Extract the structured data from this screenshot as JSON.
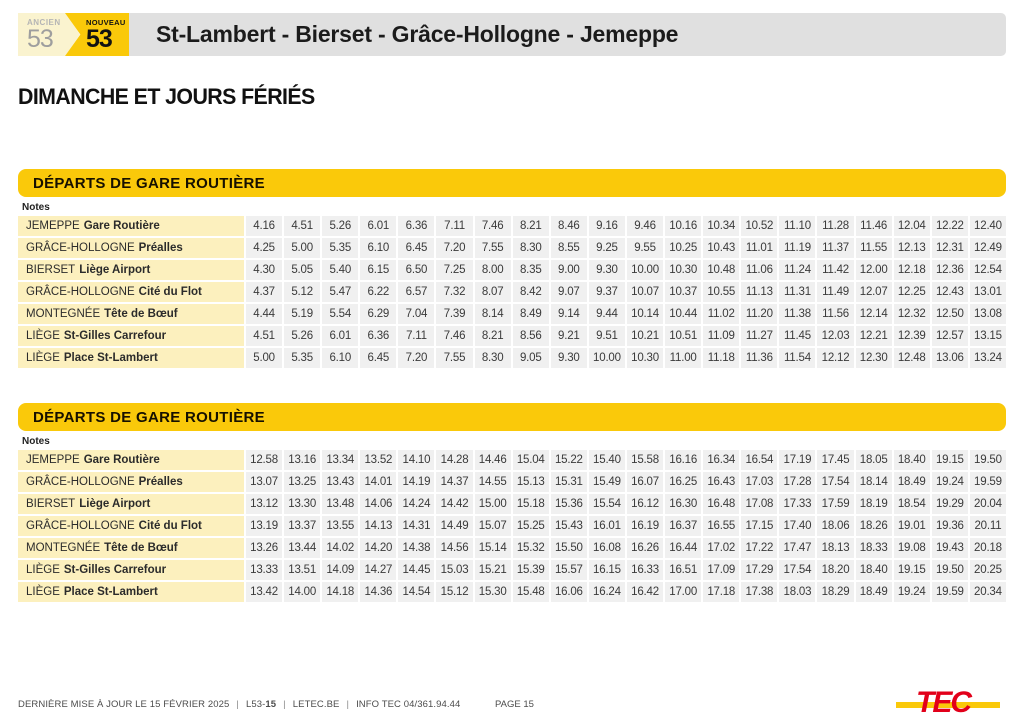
{
  "header": {
    "ancien_label": "ANCIEN",
    "ancien_number": "53",
    "nouveau_label": "NOUVEAU",
    "nouveau_number": "53",
    "title": "St-Lambert - Bierset - Grâce-Hollogne - Jemeppe"
  },
  "section_title": "DIMANCHE ET JOURS FÉRIÉS",
  "tables": [
    {
      "header": "DÉPARTS DE GARE ROUTIÈRE",
      "notes_label": "Notes",
      "rows": [
        {
          "place": "JEMEPPE",
          "stop": "Gare Routière",
          "times": [
            "4.16",
            "4.51",
            "5.26",
            "6.01",
            "6.36",
            "7.11",
            "7.46",
            "8.21",
            "8.46",
            "9.16",
            "9.46",
            "10.16",
            "10.34",
            "10.52",
            "11.10",
            "11.28",
            "11.46",
            "12.04",
            "12.22",
            "12.40"
          ]
        },
        {
          "place": "GRÂCE-HOLLOGNE",
          "stop": "Préalles",
          "times": [
            "4.25",
            "5.00",
            "5.35",
            "6.10",
            "6.45",
            "7.20",
            "7.55",
            "8.30",
            "8.55",
            "9.25",
            "9.55",
            "10.25",
            "10.43",
            "11.01",
            "11.19",
            "11.37",
            "11.55",
            "12.13",
            "12.31",
            "12.49"
          ]
        },
        {
          "place": "BIERSET",
          "stop": "Liège Airport",
          "times": [
            "4.30",
            "5.05",
            "5.40",
            "6.15",
            "6.50",
            "7.25",
            "8.00",
            "8.35",
            "9.00",
            "9.30",
            "10.00",
            "10.30",
            "10.48",
            "11.06",
            "11.24",
            "11.42",
            "12.00",
            "12.18",
            "12.36",
            "12.54"
          ]
        },
        {
          "place": "GRÂCE-HOLLOGNE",
          "stop": "Cité du Flot",
          "times": [
            "4.37",
            "5.12",
            "5.47",
            "6.22",
            "6.57",
            "7.32",
            "8.07",
            "8.42",
            "9.07",
            "9.37",
            "10.07",
            "10.37",
            "10.55",
            "11.13",
            "11.31",
            "11.49",
            "12.07",
            "12.25",
            "12.43",
            "13.01"
          ]
        },
        {
          "place": "MONTEGNÉE",
          "stop": "Tête de Bœuf",
          "times": [
            "4.44",
            "5.19",
            "5.54",
            "6.29",
            "7.04",
            "7.39",
            "8.14",
            "8.49",
            "9.14",
            "9.44",
            "10.14",
            "10.44",
            "11.02",
            "11.20",
            "11.38",
            "11.56",
            "12.14",
            "12.32",
            "12.50",
            "13.08"
          ]
        },
        {
          "place": "LIÈGE",
          "stop": "St-Gilles Carrefour",
          "times": [
            "4.51",
            "5.26",
            "6.01",
            "6.36",
            "7.11",
            "7.46",
            "8.21",
            "8.56",
            "9.21",
            "9.51",
            "10.21",
            "10.51",
            "11.09",
            "11.27",
            "11.45",
            "12.03",
            "12.21",
            "12.39",
            "12.57",
            "13.15"
          ]
        },
        {
          "place": "LIÈGE",
          "stop": "Place St-Lambert",
          "times": [
            "5.00",
            "5.35",
            "6.10",
            "6.45",
            "7.20",
            "7.55",
            "8.30",
            "9.05",
            "9.30",
            "10.00",
            "10.30",
            "11.00",
            "11.18",
            "11.36",
            "11.54",
            "12.12",
            "12.30",
            "12.48",
            "13.06",
            "13.24"
          ]
        }
      ]
    },
    {
      "header": "DÉPARTS DE GARE ROUTIÈRE",
      "notes_label": "Notes",
      "rows": [
        {
          "place": "JEMEPPE",
          "stop": "Gare Routière",
          "times": [
            "12.58",
            "13.16",
            "13.34",
            "13.52",
            "14.10",
            "14.28",
            "14.46",
            "15.04",
            "15.22",
            "15.40",
            "15.58",
            "16.16",
            "16.34",
            "16.54",
            "17.19",
            "17.45",
            "18.05",
            "18.40",
            "19.15",
            "19.50"
          ]
        },
        {
          "place": "GRÂCE-HOLLOGNE",
          "stop": "Préalles",
          "times": [
            "13.07",
            "13.25",
            "13.43",
            "14.01",
            "14.19",
            "14.37",
            "14.55",
            "15.13",
            "15.31",
            "15.49",
            "16.07",
            "16.25",
            "16.43",
            "17.03",
            "17.28",
            "17.54",
            "18.14",
            "18.49",
            "19.24",
            "19.59"
          ]
        },
        {
          "place": "BIERSET",
          "stop": "Liège Airport",
          "times": [
            "13.12",
            "13.30",
            "13.48",
            "14.06",
            "14.24",
            "14.42",
            "15.00",
            "15.18",
            "15.36",
            "15.54",
            "16.12",
            "16.30",
            "16.48",
            "17.08",
            "17.33",
            "17.59",
            "18.19",
            "18.54",
            "19.29",
            "20.04"
          ]
        },
        {
          "place": "GRÂCE-HOLLOGNE",
          "stop": "Cité du Flot",
          "times": [
            "13.19",
            "13.37",
            "13.55",
            "14.13",
            "14.31",
            "14.49",
            "15.07",
            "15.25",
            "15.43",
            "16.01",
            "16.19",
            "16.37",
            "16.55",
            "17.15",
            "17.40",
            "18.06",
            "18.26",
            "19.01",
            "19.36",
            "20.11"
          ]
        },
        {
          "place": "MONTEGNÉE",
          "stop": "Tête de Bœuf",
          "times": [
            "13.26",
            "13.44",
            "14.02",
            "14.20",
            "14.38",
            "14.56",
            "15.14",
            "15.32",
            "15.50",
            "16.08",
            "16.26",
            "16.44",
            "17.02",
            "17.22",
            "17.47",
            "18.13",
            "18.33",
            "19.08",
            "19.43",
            "20.18"
          ]
        },
        {
          "place": "LIÈGE",
          "stop": "St-Gilles Carrefour",
          "times": [
            "13.33",
            "13.51",
            "14.09",
            "14.27",
            "14.45",
            "15.03",
            "15.21",
            "15.39",
            "15.57",
            "16.15",
            "16.33",
            "16.51",
            "17.09",
            "17.29",
            "17.54",
            "18.20",
            "18.40",
            "19.15",
            "19.50",
            "20.25"
          ]
        },
        {
          "place": "LIÈGE",
          "stop": "Place St-Lambert",
          "times": [
            "13.42",
            "14.00",
            "14.18",
            "14.36",
            "14.54",
            "15.12",
            "15.30",
            "15.48",
            "16.06",
            "16.24",
            "16.42",
            "17.00",
            "17.18",
            "17.38",
            "18.03",
            "18.29",
            "18.49",
            "19.24",
            "19.59",
            "20.34"
          ]
        }
      ]
    }
  ],
  "footer": {
    "updated": "DERNIÈRE MISE À JOUR LE 15 FÉVRIER 2025",
    "line_code_prefix": "L53-",
    "line_code_bold": "15",
    "website": "LETEC.BE",
    "info": "INFO TEC 04/361.94.44",
    "sep": "|",
    "page": "PAGE 15",
    "logo_text": "TEC"
  },
  "colors": {
    "tec_yellow": "#FAC90A",
    "pale_yellow": "#FCF0BE",
    "badge_pale_yellow": "#FAF3CF",
    "title_bar_gray": "#E0E0E0",
    "time_cell_gray": "#F0F0F0",
    "tec_red": "#E2001A"
  }
}
